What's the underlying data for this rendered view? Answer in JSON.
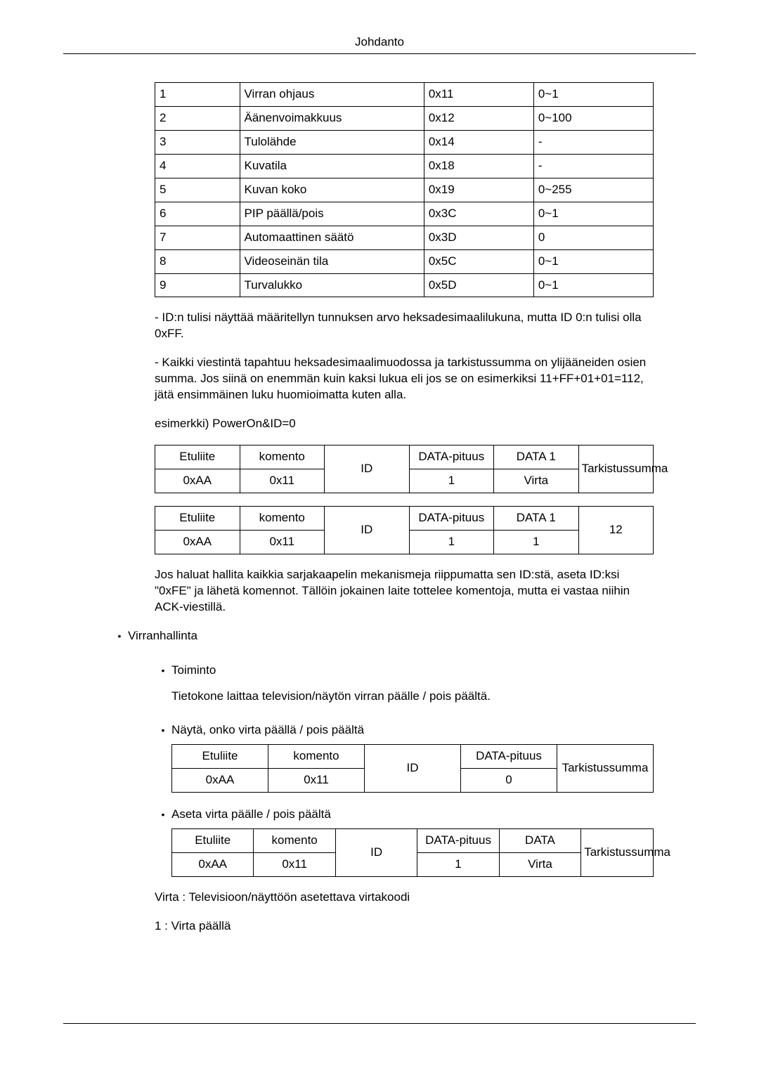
{
  "header_title": "Johdanto",
  "main_table": {
    "col_widths_pct": [
      17,
      37,
      22,
      24
    ],
    "rows": [
      [
        "1",
        "Virran ohjaus",
        "0x11",
        "0~1"
      ],
      [
        "2",
        "Äänenvoimakkuus",
        "0x12",
        "0~100"
      ],
      [
        "3",
        "Tulolähde",
        "0x14",
        "-"
      ],
      [
        "4",
        "Kuvatila",
        "0x18",
        "-"
      ],
      [
        "5",
        "Kuvan koko",
        "0x19",
        "0~255"
      ],
      [
        "6",
        "PIP päällä/pois",
        "0x3C",
        "0~1"
      ],
      [
        "7",
        "Automaattinen säätö",
        "0x3D",
        "0"
      ],
      [
        "8",
        "Videoseinän tila",
        "0x5C",
        "0~1"
      ],
      [
        "9",
        "Turvalukko",
        "0x5D",
        "0~1"
      ]
    ]
  },
  "para_id_note": "- ID:n tulisi näyttää määritellyn tunnuksen arvo heksadesimaalilukuna, mutta ID 0:n tulisi olla 0xFF.",
  "para_checksum": "- Kaikki viestintä tapahtuu heksadesimaalimuodossa ja tarkistussumma on ylijääneiden osien summa. Jos siinä on enemmän kuin kaksi lukua eli jos se on esimerkiksi 11+FF+01+01=112, jätä ensimmäinen luku huomioimatta kuten alla.",
  "example_label": "esimerkki) PowerOn&ID=0",
  "proto_col_widths_pct": [
    17,
    17,
    17,
    17,
    17,
    15
  ],
  "proto_table_a": {
    "row1": [
      "Etuliite",
      "komento",
      "ID",
      "DATA-pituus",
      "DATA 1",
      "Tarkistussumma"
    ],
    "row2": [
      "0xAA",
      "0x11",
      "",
      "1",
      "Virta",
      ""
    ]
  },
  "proto_table_b": {
    "row1": [
      "Etuliite",
      "komento",
      "ID",
      "DATA-pituus",
      "DATA 1",
      "12"
    ],
    "row2": [
      "0xAA",
      "0x11",
      "",
      "1",
      "1",
      ""
    ]
  },
  "para_broadcast": "Jos haluat hallita kaikkia sarjakaapelin mekanismeja riippumatta sen ID:stä, aseta ID:ksi \"0xFE\" ja lähetä komennot. Tällöin jokainen laite tottelee komentoja, mutta ei vastaa niihin ACK-viestillä.",
  "section_power": "Virranhallinta",
  "sub_function": "Toiminto",
  "sub_function_desc": "Tietokone laittaa television/näytön virran päälle / pois päältä.",
  "sub_show": "Näytä, onko virta päällä / pois päältä",
  "sub_set": "Aseta virta päälle / pois päältä",
  "proto5_col_widths_pct": [
    20,
    20,
    20,
    20,
    20
  ],
  "proto_table_c": {
    "row1": [
      "Etuliite",
      "komento",
      "ID",
      "DATA-pituus",
      "Tarkistussumma"
    ],
    "row2": [
      "0xAA",
      "0x11",
      "",
      "0",
      ""
    ]
  },
  "proto_table_d": {
    "row1": [
      "Etuliite",
      "komento",
      "ID",
      "DATA-pituus",
      "DATA",
      "Tarkistussumma"
    ],
    "row2": [
      "0xAA",
      "0x11",
      "",
      "1",
      "Virta",
      ""
    ]
  },
  "virta_desc": "Virta : Televisioon/näyttöön asetettava virtakoodi",
  "virta_on": "1 : Virta päällä"
}
